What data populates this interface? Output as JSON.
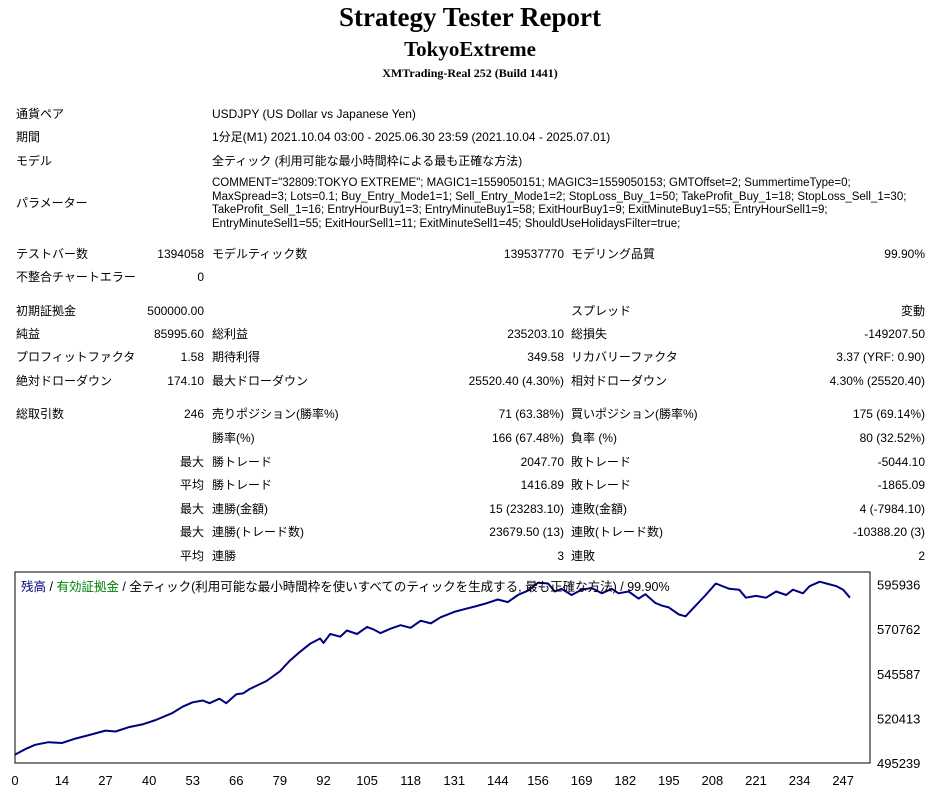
{
  "report": {
    "title": "Strategy Tester Report",
    "expert": "TokyoExtreme",
    "build": "XMTrading-Real 252 (Build 1441)"
  },
  "info": {
    "symbol_label": "通貨ペア",
    "symbol": "USDJPY (US Dollar vs Japanese Yen)",
    "period_label": "期間",
    "period": "1分足(M1) 2021.10.04 03:00 - 2025.06.30 23:59 (2021.10.04 - 2025.07.01)",
    "model_label": "モデル",
    "model": "全ティック (利用可能な最小時間枠による最も正確な方法)",
    "params_label": "パラメーター",
    "params": "COMMENT=\"32809:TOKYO EXTREME\"; MAGIC1=1559050151; MAGIC3=1559050153; GMTOffset=2; SummertimeType=0; MaxSpread=3; Lots=0.1; Buy_Entry_Mode1=1; Sell_Entry_Mode1=2; StopLoss_Buy_1=50; TakeProfit_Buy_1=18; StopLoss_Sell_1=30; TakeProfit_Sell_1=16; EntryHourBuy1=3; EntryMinuteBuy1=58; ExitHourBuy1=9; ExitMinuteBuy1=55; EntryHourSell1=9; EntryMinuteSell1=55; ExitHourSell1=11; ExitMinuteSell1=45; ShouldUseHolidaysFilter=true;"
  },
  "stats": {
    "bars_label": "テストバー数",
    "bars": "1394058",
    "ticks_label": "モデルティック数",
    "ticks": "139537770",
    "quality_label": "モデリング品質",
    "quality": "99.90%",
    "mismatch_label": "不整合チャートエラー",
    "mismatch": "0",
    "deposit_label": "初期証拠金",
    "deposit": "500000.00",
    "spread_label": "スプレッド",
    "spread": "変動",
    "net_label": "純益",
    "net": "85995.60",
    "gross_profit_label": "総利益",
    "gross_profit": "235203.10",
    "gross_loss_label": "総損失",
    "gross_loss": "-149207.50",
    "pf_label": "プロフィットファクタ",
    "pf": "1.58",
    "expected_label": "期待利得",
    "expected": "349.58",
    "recovery_label": "リカバリーファクタ",
    "recovery": "3.37 (YRF: 0.90)",
    "abs_dd_label": "絶対ドローダウン",
    "abs_dd": "174.10",
    "max_dd_label": "最大ドローダウン",
    "max_dd": "25520.40 (4.30%)",
    "rel_dd_label": "相対ドローダウン",
    "rel_dd": "4.30% (25520.40)",
    "trades_label": "総取引数",
    "trades": "246",
    "short_label": "売りポジション(勝率%)",
    "short": "71 (63.38%)",
    "long_label": "買いポジション(勝率%)",
    "long": "175 (69.14%)",
    "win_rate_label": "勝率(%)",
    "win_rate": "166 (67.48%)",
    "loss_rate_label": "負率 (%)",
    "loss_rate": "80 (32.52%)",
    "max_label": "最大",
    "avg_label": "平均",
    "win_trade_label": "勝トレード",
    "loss_trade_label": "敗トレード",
    "max_win": "2047.70",
    "max_loss": "-5044.10",
    "avg_win": "1416.89",
    "avg_loss": "-1865.09",
    "consec_win_amt_label": "連勝(金額)",
    "consec_win_amt": "15 (23283.10)",
    "consec_loss_amt_label": "連敗(金額)",
    "consec_loss_amt": "4 (-7984.10)",
    "consec_win_cnt_label": "連勝(トレード数)",
    "consec_win_cnt": "23679.50 (13)",
    "consec_loss_cnt_label": "連敗(トレード数)",
    "consec_loss_cnt": "-10388.20 (3)",
    "avg_consec_win_label": "連勝",
    "avg_consec_win": "3",
    "avg_consec_loss_label": "連敗",
    "avg_consec_loss": "2"
  },
  "legend": {
    "balance": "残高",
    "sep1": " / ",
    "equity": "有効証拠金",
    "sep2": " / ",
    "desc": "全ティック(利用可能な最小時間枠を使いすべてのティックを生成する, 最も正確な方法) / 99.90%"
  },
  "chart_data": {
    "type": "line",
    "title": "",
    "xlabel": "",
    "ylabel": "",
    "xlim": [
      0,
      255
    ],
    "ylim": [
      495239,
      603000
    ],
    "x_ticks": [
      "0",
      "14",
      "27",
      "40",
      "53",
      "66",
      "79",
      "92",
      "105",
      "118",
      "131",
      "144",
      "156",
      "169",
      "182",
      "195",
      "208",
      "221",
      "234",
      "247"
    ],
    "y_ticks": [
      595936,
      570762,
      545587,
      520413,
      495239
    ],
    "grid": false,
    "colors": {
      "balance": "#000080",
      "equity": "#008000"
    },
    "series": [
      {
        "name": "残高",
        "x": [
          0,
          3,
          6,
          10,
          14,
          18,
          22,
          27,
          30,
          34,
          38,
          42,
          47,
          50,
          53,
          56,
          58,
          61,
          63,
          66,
          68,
          70,
          75,
          79,
          82,
          85,
          88,
          91,
          92,
          94,
          97,
          99,
          102,
          105,
          107,
          109,
          112,
          115,
          118,
          121,
          124,
          127,
          131,
          134,
          137,
          140,
          144,
          147,
          150,
          153,
          156,
          159,
          161,
          163,
          166,
          169,
          172,
          175,
          178,
          180,
          183,
          186,
          188,
          191,
          193,
          195,
          198,
          200,
          203,
          206,
          209,
          213,
          216,
          218,
          221,
          224,
          227,
          230,
          232,
          235,
          237,
          240,
          242,
          245,
          247,
          249
        ],
        "values": [
          500000,
          503000,
          505500,
          507000,
          506500,
          509000,
          511000,
          513500,
          513000,
          515500,
          517000,
          519500,
          523500,
          527000,
          529500,
          530500,
          529000,
          531500,
          529000,
          534000,
          534500,
          537000,
          541500,
          547000,
          553000,
          558000,
          562500,
          565500,
          563000,
          568000,
          566500,
          570000,
          568000,
          572000,
          570500,
          568500,
          571000,
          573000,
          571500,
          575500,
          574000,
          577500,
          580500,
          582000,
          583500,
          585000,
          587500,
          586000,
          590000,
          592500,
          597000,
          596500,
          592000,
          593500,
          590000,
          593000,
          594000,
          591000,
          593500,
          591000,
          592000,
          588000,
          590500,
          585500,
          584000,
          583000,
          579000,
          578000,
          584000,
          590000,
          596500,
          593500,
          593000,
          588500,
          589500,
          588500,
          592000,
          590000,
          593000,
          591000,
          595000,
          597500,
          596500,
          595000,
          593000,
          588500
        ]
      }
    ]
  }
}
